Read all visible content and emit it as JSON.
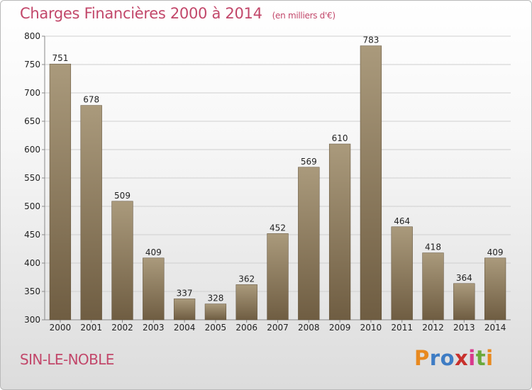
{
  "title": "Charges Financières 2000 à 2014",
  "unit_note": "(en milliers d'€)",
  "city": "SIN-LE-NOBLE",
  "logo": {
    "text": "Proxiti",
    "letter_colors": [
      "#e8891f",
      "#3e7cc4",
      "#3e7cc4",
      "#c8302c",
      "#d83a8c",
      "#6aa93b",
      "#e8891f"
    ]
  },
  "colors": {
    "title": "#c2476a",
    "bar_top": "#aa9a7c",
    "bar_bottom": "#6f5d42",
    "grid": "#cfcfcf"
  },
  "chart_data": {
    "type": "bar",
    "title": "Charges Financières 2000 à 2014",
    "subtitle": "(en milliers d'€)",
    "xlabel": "",
    "ylabel": "",
    "categories": [
      "2000",
      "2001",
      "2002",
      "2003",
      "2004",
      "2005",
      "2006",
      "2007",
      "2008",
      "2009",
      "2010",
      "2011",
      "2012",
      "2013",
      "2014"
    ],
    "values": [
      751,
      678,
      509,
      409,
      337,
      328,
      362,
      452,
      569,
      610,
      783,
      464,
      418,
      364,
      409
    ],
    "ylim": [
      300,
      800
    ],
    "yticks": [
      300,
      350,
      400,
      450,
      500,
      550,
      600,
      650,
      700,
      750,
      800
    ],
    "grid": true,
    "legend": "none"
  }
}
